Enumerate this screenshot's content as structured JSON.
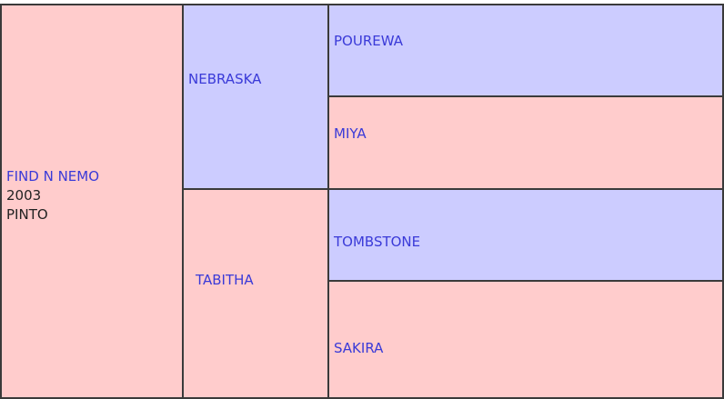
{
  "pedigree": {
    "horse": {
      "name": "FIND N NEMO",
      "year": "2003",
      "color": "PINTO"
    },
    "parents": [
      "NEBRASKA",
      "TABITHA"
    ],
    "grandparents": [
      "POUREWA",
      "MIYA",
      "TOMBSTONE",
      "SAKIRA"
    ]
  }
}
